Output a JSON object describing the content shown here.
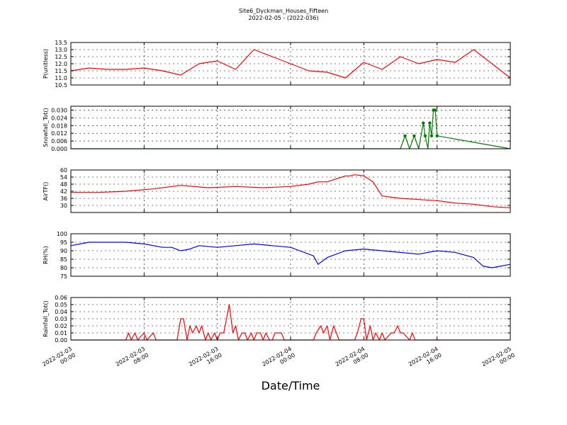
{
  "title": "Site6_Dyckman_Houses_Fifteen",
  "subtitle": "2022-02-05 - (2022-036)",
  "xlabel": "Date/Time",
  "chart_data": [
    {
      "type": "line",
      "ylabel": "P(unitless)",
      "color": "#ff0000",
      "ylim": [
        10.5,
        13.5
      ],
      "yticks": [
        "10.5",
        "11.0",
        "11.5",
        "12.0",
        "12.5",
        "13.0",
        "13.5"
      ],
      "x": [
        0,
        2,
        4,
        6,
        8,
        10,
        12,
        14,
        16,
        18,
        20,
        22,
        24,
        26,
        28,
        30,
        32,
        34,
        36,
        38,
        40,
        42,
        44,
        46,
        48
      ],
      "values": [
        11.5,
        11.7,
        11.6,
        11.6,
        11.7,
        11.5,
        11.2,
        12.0,
        12.2,
        11.6,
        13.0,
        12.5,
        12.0,
        11.5,
        11.4,
        11.0,
        12.1,
        11.6,
        12.5,
        12.0,
        12.3,
        12.1,
        13.0,
        12.0,
        11.0
      ],
      "grid": true
    },
    {
      "type": "line",
      "ylabel": "Snowfall_Tot()",
      "color": "#008000",
      "markers": true,
      "ylim": [
        0.0,
        0.033
      ],
      "yticks": [
        "0.000",
        "0.006",
        "0.012",
        "0.018",
        "0.024",
        "0.030"
      ],
      "x": [
        0,
        36.0,
        36.5,
        37.0,
        37.5,
        38.0,
        38.5,
        38.7,
        39.0,
        39.2,
        39.4,
        39.6,
        39.8,
        40.0,
        48
      ],
      "values": [
        0.0,
        0.0,
        0.01,
        0.0,
        0.01,
        0.0,
        0.02,
        0.01,
        0.0,
        0.02,
        0.01,
        0.03,
        0.03,
        0.01,
        0.0
      ],
      "grid": true
    },
    {
      "type": "line",
      "ylabel": "AirTF()",
      "color": "#ff0000",
      "ylim": [
        24,
        60
      ],
      "yticks": [
        "30",
        "36",
        "42",
        "48",
        "54",
        "60"
      ],
      "x": [
        0,
        3,
        6,
        9,
        12,
        15,
        18,
        21,
        24,
        26,
        27,
        28,
        30,
        30.5,
        31,
        32,
        33,
        34,
        36,
        38,
        40,
        42,
        44,
        46,
        48
      ],
      "values": [
        41,
        41,
        42,
        44,
        47,
        45,
        46,
        45,
        46,
        48,
        50,
        50,
        55,
        55,
        56,
        55,
        50,
        38,
        36,
        35,
        34,
        32,
        31,
        29,
        28
      ],
      "grid": true
    },
    {
      "type": "line",
      "ylabel": "RH(%)",
      "color": "#0000ff",
      "ylim": [
        75,
        100
      ],
      "yticks": [
        "75",
        "80",
        "85",
        "90",
        "95",
        "100"
      ],
      "x": [
        0,
        2,
        4,
        6,
        8,
        10,
        11,
        12,
        13,
        14,
        16,
        18,
        20,
        22,
        24,
        25,
        26,
        26.5,
        27,
        28,
        30,
        32,
        34,
        36,
        38,
        40,
        42,
        44,
        45,
        46,
        48
      ],
      "values": [
        93,
        95,
        95,
        95,
        94,
        92,
        92,
        90,
        91,
        93,
        92,
        93,
        94,
        93,
        92,
        90,
        88,
        87,
        82,
        86,
        90,
        91,
        90,
        89,
        88,
        90,
        89,
        86,
        81,
        80,
        82
      ],
      "grid": true
    },
    {
      "type": "line",
      "ylabel": "Rainfall_Tot()",
      "color": "#ff0000",
      "ylim": [
        0.0,
        0.06
      ],
      "yticks": [
        "0.00",
        "0.01",
        "0.02",
        "0.03",
        "0.04",
        "0.05",
        "0.06"
      ],
      "x": [
        0,
        6.0,
        6.3,
        6.6,
        7.0,
        7.3,
        8.0,
        8.3,
        9.0,
        9.3,
        11.6,
        12.0,
        12.3,
        12.7,
        13.0,
        13.3,
        13.7,
        14.0,
        14.3,
        14.7,
        15.0,
        15.3,
        15.7,
        16.0,
        16.3,
        16.7,
        17.0,
        17.3,
        17.7,
        18.0,
        18.3,
        18.7,
        19.0,
        19.3,
        19.7,
        20.0,
        20.3,
        20.7,
        21.0,
        21.3,
        21.7,
        22.0,
        22.3,
        23.0,
        23.3,
        23.7,
        24.0,
        24.3,
        26.5,
        26.8,
        27.3,
        27.6,
        28.0,
        28.3,
        28.7,
        29.0,
        29.3,
        31.0,
        31.3,
        31.7,
        32.0,
        32.3,
        32.7,
        33.0,
        33.3,
        33.7,
        34.0,
        34.3,
        35.0,
        35.3,
        35.7,
        36.0,
        36.3,
        37.0,
        37.3,
        37.6,
        48
      ],
      "values": [
        0,
        0,
        0.01,
        0,
        0.01,
        0,
        0.01,
        0,
        0.01,
        0,
        0,
        0.03,
        0.03,
        0,
        0.02,
        0.01,
        0.02,
        0.01,
        0.02,
        0,
        0.01,
        0,
        0.01,
        0,
        0.01,
        0.01,
        0.03,
        0.05,
        0.01,
        0.02,
        0,
        0.01,
        0.01,
        0,
        0.01,
        0,
        0.01,
        0.01,
        0,
        0.01,
        0,
        0,
        0.01,
        0.01,
        0,
        0,
        0,
        0,
        0,
        0.01,
        0.02,
        0.01,
        0.02,
        0,
        0.02,
        0.01,
        0,
        0,
        0.01,
        0.03,
        0.03,
        0,
        0.02,
        0,
        0.01,
        0,
        0.01,
        0,
        0.01,
        0.01,
        0.02,
        0.01,
        0.01,
        0,
        0.01,
        0,
        0
      ],
      "grid": true
    }
  ],
  "x_axis": {
    "unit": "hours since 2022-02-03 00:00",
    "xlim": [
      0,
      48
    ],
    "tick_hours": [
      0,
      8,
      16,
      24,
      32,
      40,
      48
    ],
    "tick_labels": [
      [
        "2022-02-03",
        "00:00"
      ],
      [
        "2022-02-03",
        "08:00"
      ],
      [
        "2022-02-03",
        "16:00"
      ],
      [
        "2022-02-04",
        "00:00"
      ],
      [
        "2022-02-04",
        "08:00"
      ],
      [
        "2022-02-04",
        "16:00"
      ],
      [
        "2022-02-05",
        "00:00"
      ]
    ]
  }
}
